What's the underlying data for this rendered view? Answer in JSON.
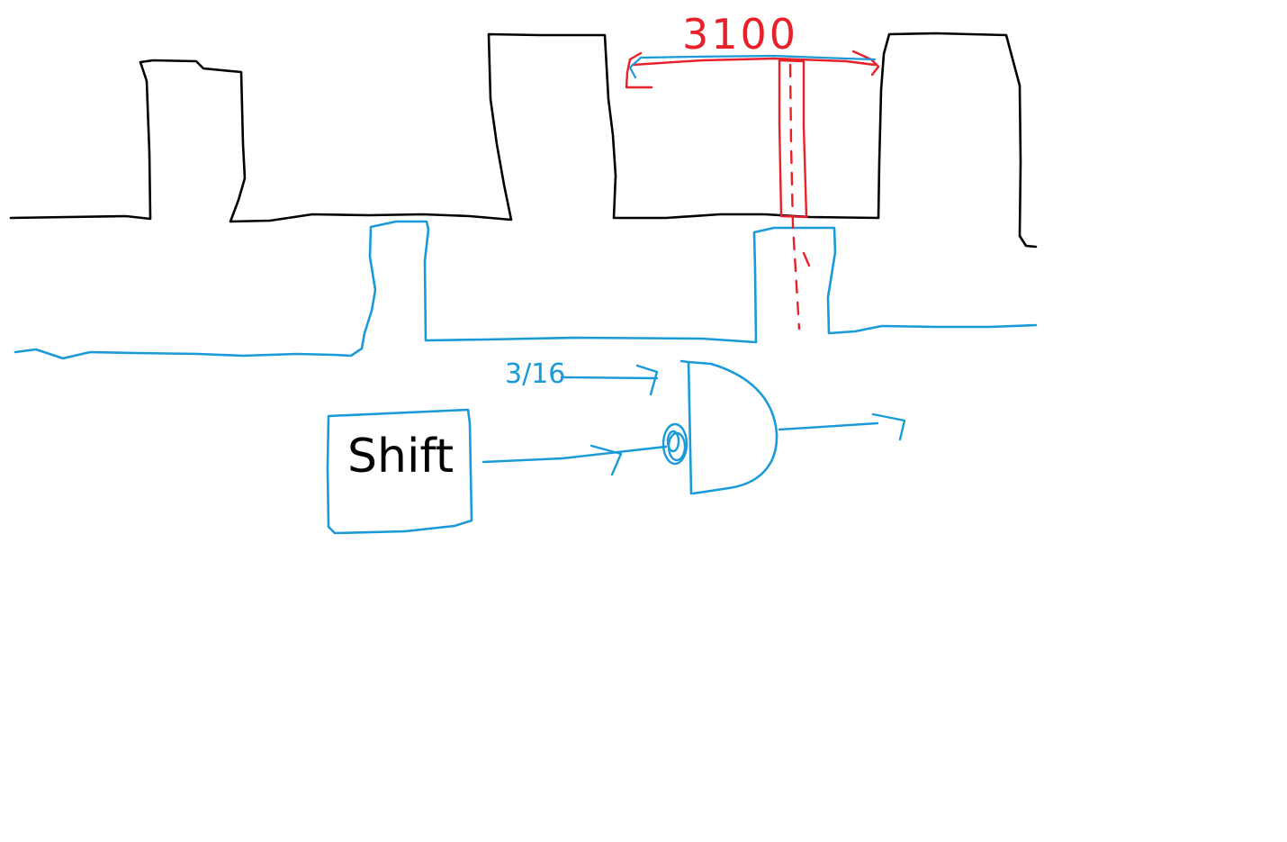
{
  "colors": {
    "background": "#ffffff",
    "signal_black": "#000000",
    "signal_blue": "#1a9ad9",
    "annotation_red": "#e8202a"
  },
  "labels": {
    "period": "3100",
    "phase": "3/16",
    "shift_box": "Shift"
  }
}
